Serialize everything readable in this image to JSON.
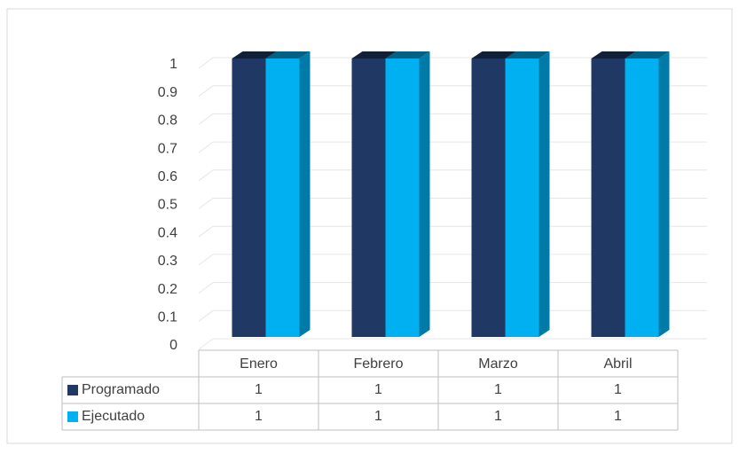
{
  "chart_data": {
    "type": "bar3d",
    "categories": [
      "Enero",
      "Febrero",
      "Marzo",
      "Abril"
    ],
    "series": [
      {
        "name": "Programado",
        "color": "#1f3864",
        "values": [
          1,
          1,
          1,
          1
        ]
      },
      {
        "name": "Ejecutado",
        "color": "#00b0f0",
        "values": [
          1,
          1,
          1,
          1
        ]
      }
    ],
    "ylim": [
      0,
      1
    ],
    "yticks": [
      0,
      0.1,
      0.2,
      0.3,
      0.4,
      0.5,
      0.6,
      0.7,
      0.8,
      0.9,
      1
    ],
    "grid": true,
    "data_table": true
  }
}
